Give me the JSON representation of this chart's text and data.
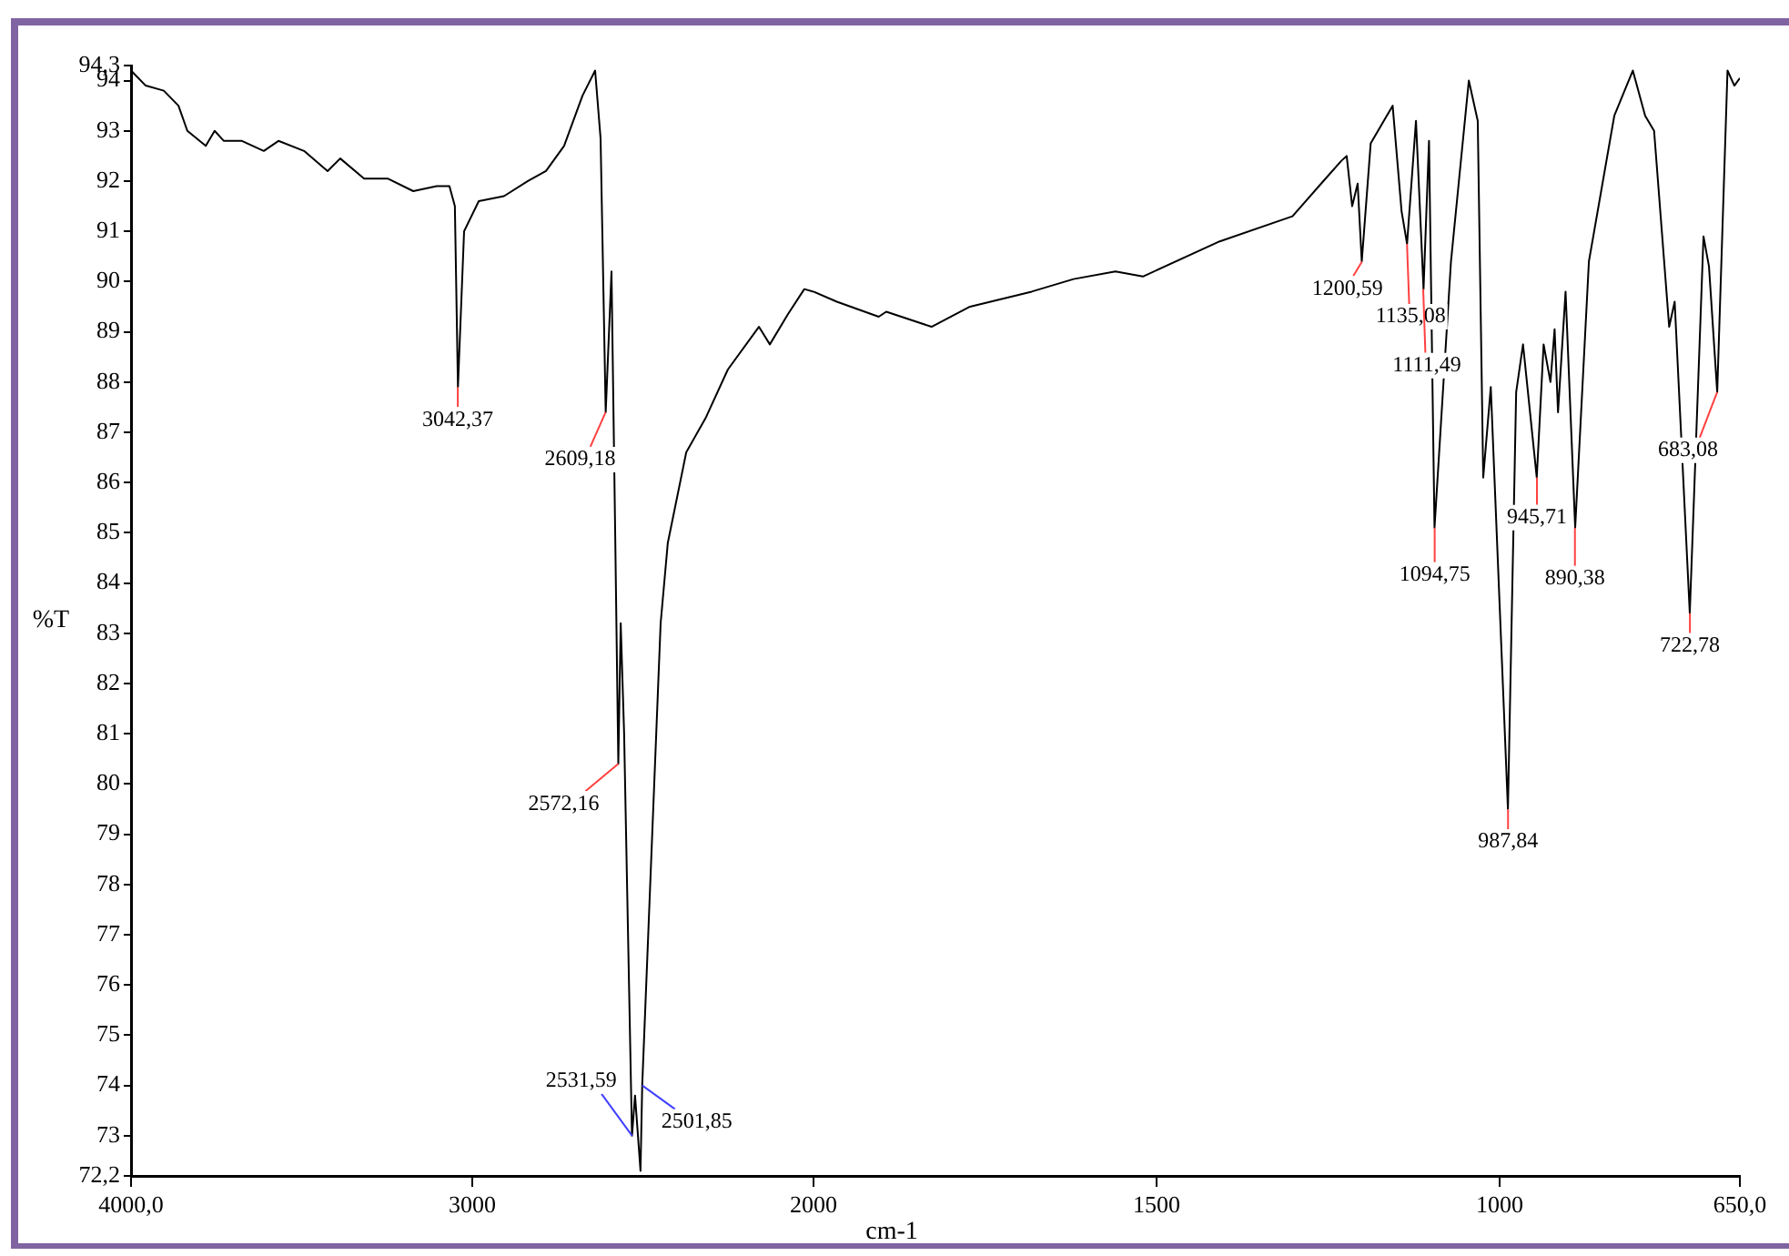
{
  "chart_data": [
    {
      "type": "line",
      "ylabel": "%T",
      "xlim": [
        4000,
        2000
      ],
      "ylim": [
        72.2,
        94.3
      ],
      "xticks": [
        {
          "value": 4000,
          "label": "4000,0"
        },
        3000
      ],
      "yticks": [
        {
          "value": 72.2,
          "label": "72,2"
        },
        73,
        74,
        75,
        76,
        77,
        78,
        79,
        80,
        81,
        82,
        83,
        84,
        85,
        86,
        87,
        88,
        89,
        90,
        91,
        92,
        93,
        94,
        {
          "value": 94.3,
          "label": "94,3"
        }
      ],
      "legend": false,
      "marker": "none",
      "line_style": "solid",
      "x": [
        4000,
        3957,
        3904,
        3861,
        3835,
        3781,
        3755,
        3728,
        3675,
        3611,
        3568,
        3493,
        3424,
        3387,
        3317,
        3248,
        3173,
        3104,
        3067,
        3051,
        3042,
        3024,
        2981,
        2907,
        2837,
        2784,
        2731,
        2677,
        2640,
        2624,
        2609,
        2592,
        2581,
        2572,
        2565,
        2555,
        2532,
        2523,
        2507,
        2502,
        2448,
        2427,
        2373,
        2315,
        2251,
        2160,
        2128,
        2075,
        2027,
        2000
      ],
      "series": [
        {
          "color": "#000000",
          "values": [
            94.2,
            93.9,
            93.8,
            93.5,
            93.0,
            92.7,
            93.0,
            92.8,
            92.8,
            92.6,
            92.8,
            92.6,
            92.2,
            92.45,
            92.05,
            92.05,
            91.8,
            91.9,
            91.9,
            91.5,
            87.9,
            91.0,
            91.6,
            91.7,
            92.0,
            92.2,
            92.7,
            93.7,
            94.2,
            92.85,
            87.4,
            90.2,
            84.9,
            80.4,
            83.2,
            81.0,
            73.0,
            73.8,
            72.3,
            74.0,
            83.2,
            84.8,
            86.6,
            87.3,
            88.25,
            89.1,
            88.75,
            89.35,
            89.85,
            89.8
          ]
        }
      ],
      "annotations": [
        {
          "text": "3042,37",
          "x": 3042.37,
          "y": 87.9
        },
        {
          "text": "2609,18",
          "x": 2609.18,
          "y": 87.4
        },
        {
          "text": "2572,16",
          "x": 2572.16,
          "y": 80.4
        },
        {
          "text": "2531,59",
          "x": 2531.59,
          "y": 73.0
        },
        {
          "text": "2501,85",
          "x": 2501.85,
          "y": 74.0
        }
      ]
    },
    {
      "type": "line",
      "xlabel": "cm-1",
      "tick_labels": "x",
      "xlim": [
        2000,
        650
      ],
      "ylim": [
        72.2,
        94.3
      ],
      "xticks": [
        2000,
        1500,
        1000,
        {
          "value": 650,
          "label": "650,0"
        }
      ],
      "legend": false,
      "marker": "none",
      "line_style": "solid",
      "x": [
        2000,
        1966,
        1905,
        1894,
        1828,
        1772,
        1682,
        1621,
        1560,
        1520,
        1408,
        1302,
        1257,
        1231,
        1223,
        1215,
        1207,
        1201,
        1188,
        1156,
        1143,
        1135,
        1122,
        1111,
        1103,
        1095,
        1071,
        1045,
        1032,
        1024,
        1013,
        988,
        976,
        966,
        946,
        936,
        926,
        920,
        915,
        904,
        890,
        870,
        833,
        806,
        788,
        775,
        753,
        745,
        723,
        703,
        695,
        683,
        668,
        658,
        650
      ],
      "series": [
        {
          "color": "#000000",
          "values": [
            89.8,
            89.6,
            89.3,
            89.4,
            89.1,
            89.5,
            89.8,
            90.05,
            90.2,
            90.1,
            90.8,
            91.3,
            92.0,
            92.4,
            92.5,
            91.5,
            91.95,
            90.4,
            92.75,
            93.5,
            91.4,
            90.75,
            93.2,
            89.85,
            92.8,
            85.1,
            90.4,
            94.0,
            93.2,
            86.1,
            87.9,
            79.5,
            87.8,
            88.75,
            86.1,
            88.75,
            88.0,
            89.05,
            87.4,
            89.8,
            85.1,
            90.4,
            93.3,
            94.2,
            93.3,
            93.0,
            89.1,
            89.6,
            83.4,
            90.9,
            90.3,
            87.8,
            94.2,
            93.9,
            94.05
          ]
        }
      ],
      "annotations": [
        {
          "text": "1200,59",
          "x": 1200.59,
          "y": 90.4
        },
        {
          "text": "1135,08",
          "x": 1135.08,
          "y": 90.75
        },
        {
          "text": "1111,49",
          "x": 1111.49,
          "y": 89.85
        },
        {
          "text": "1094,75",
          "x": 1094.75,
          "y": 85.1
        },
        {
          "text": "987,84",
          "x": 987.84,
          "y": 79.5
        },
        {
          "text": "945,71",
          "x": 945.71,
          "y": 86.1
        },
        {
          "text": "890,38",
          "x": 890.38,
          "y": 85.1
        },
        {
          "text": "722,78",
          "x": 722.78,
          "y": 83.4
        },
        {
          "text": "683,08",
          "x": 683.08,
          "y": 87.8
        }
      ]
    }
  ]
}
